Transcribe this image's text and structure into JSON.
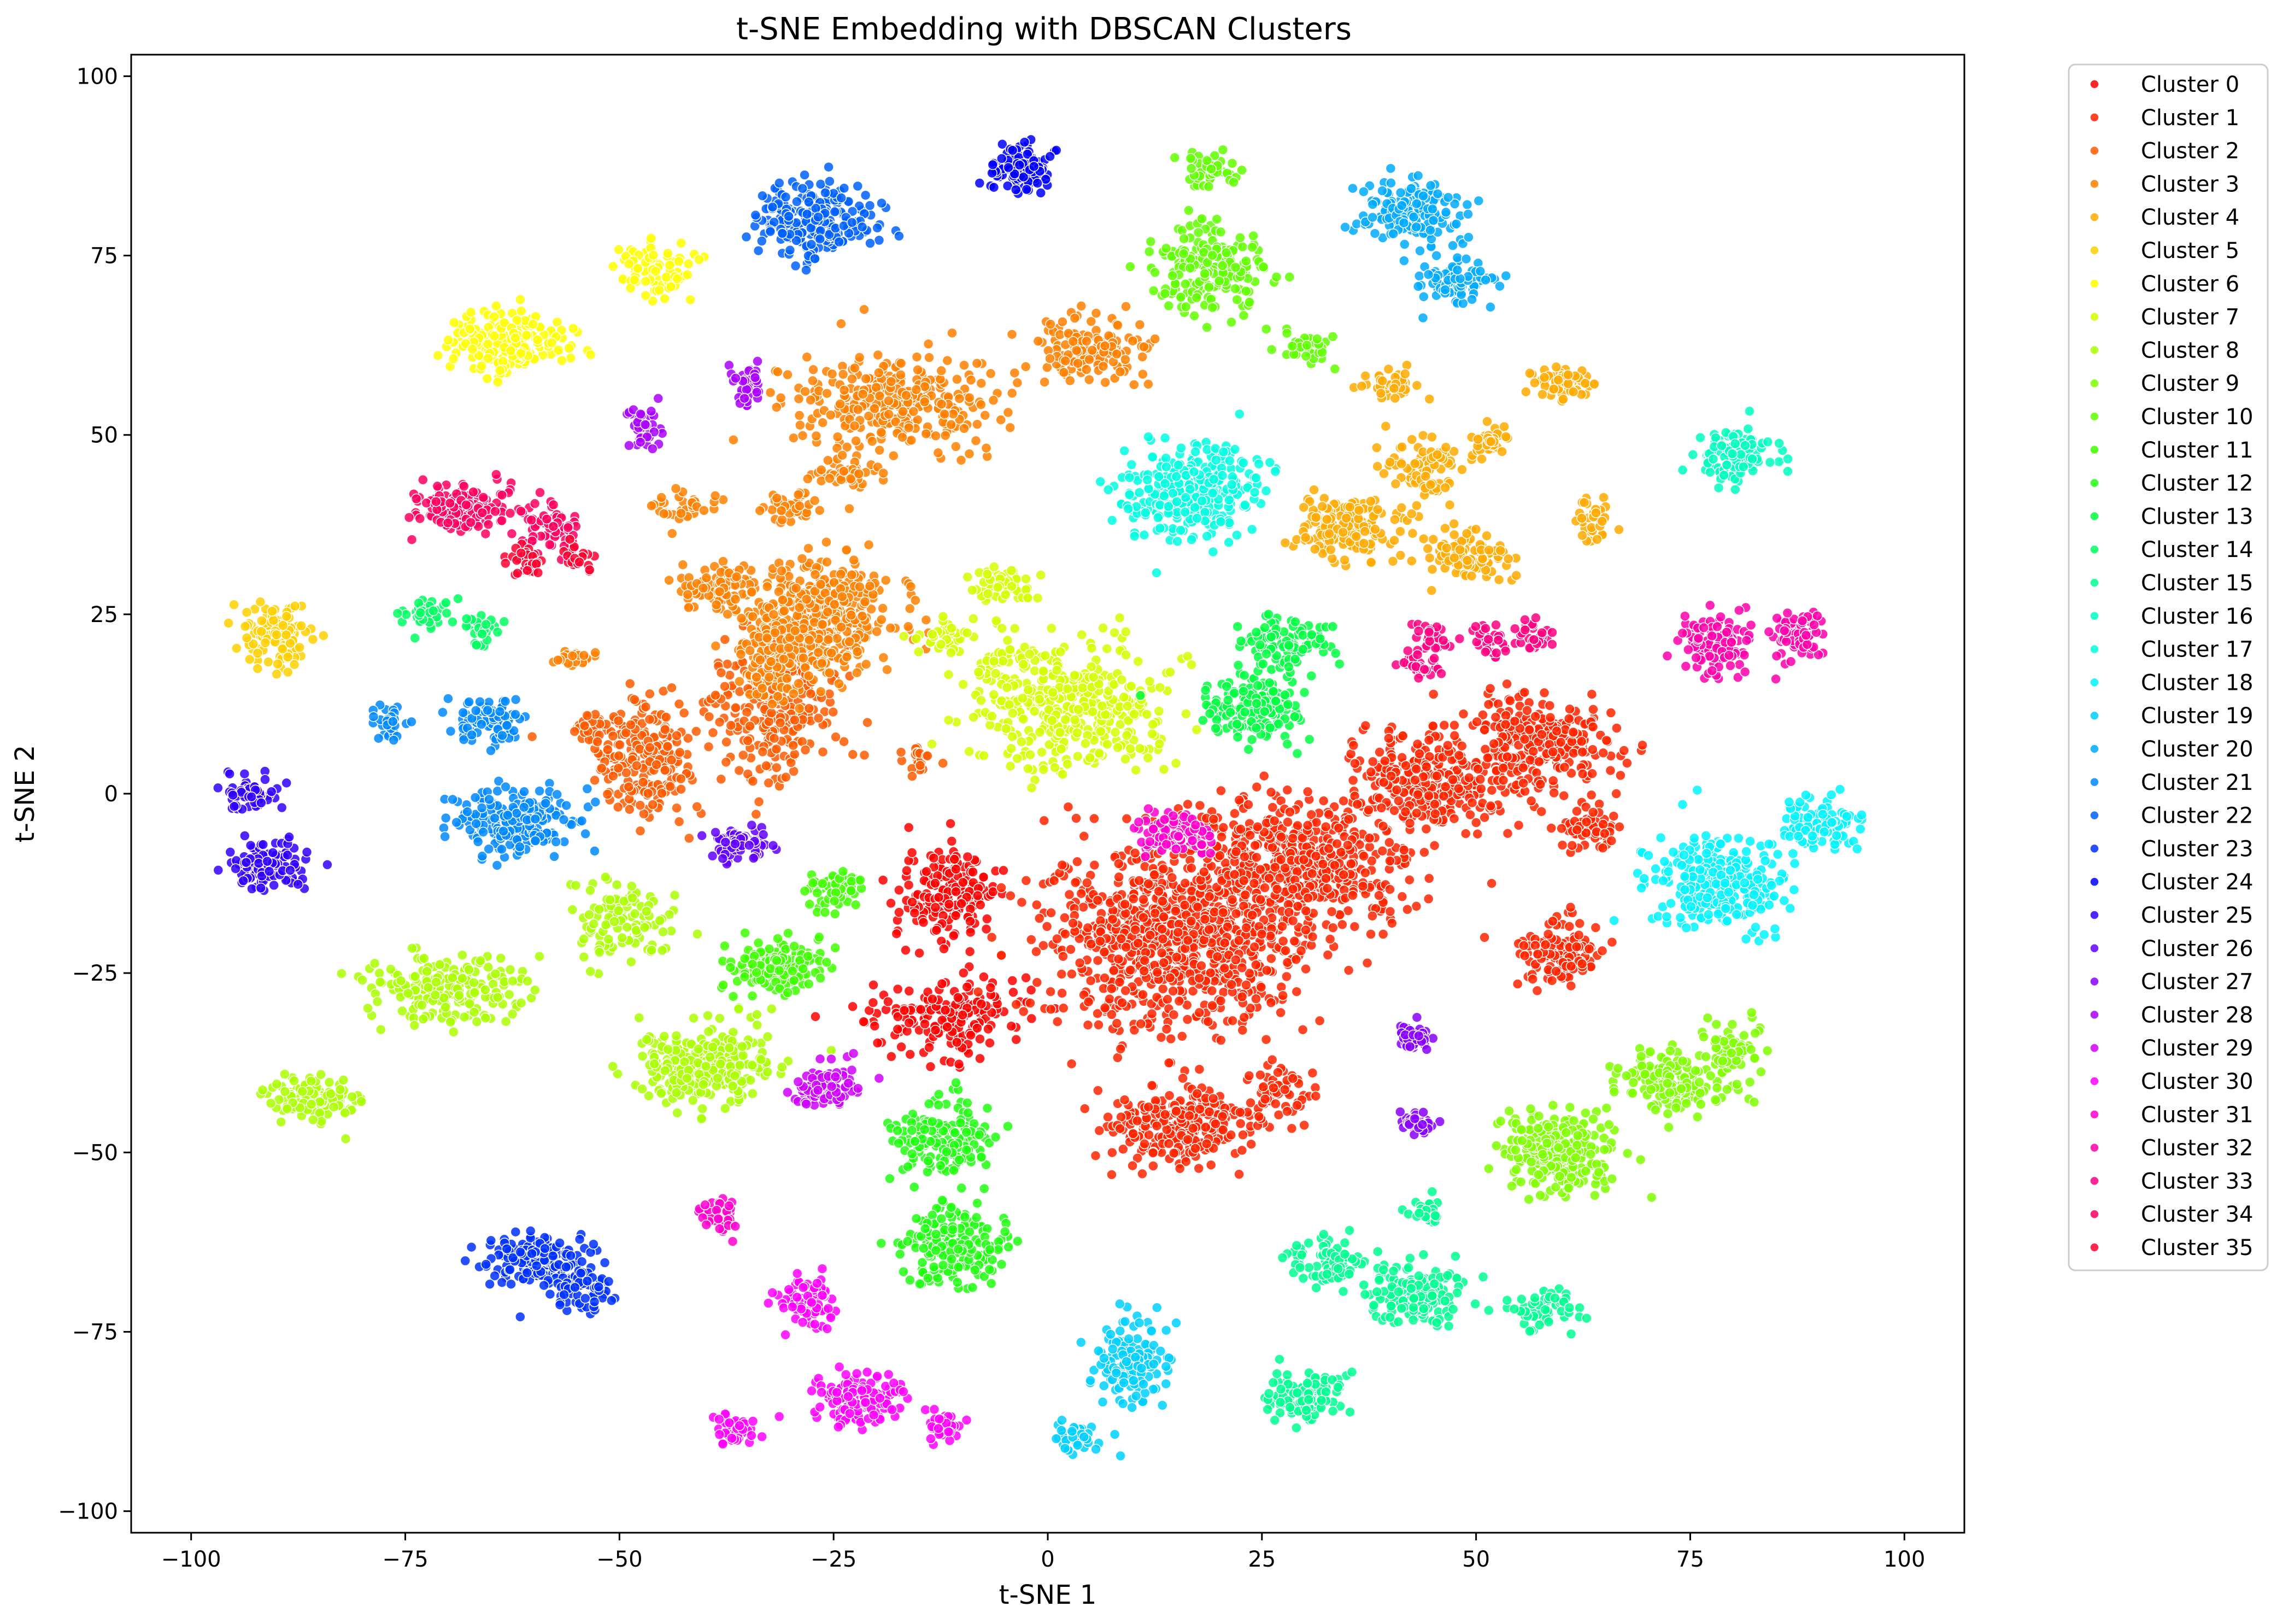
{
  "chart_data": {
    "type": "scatter",
    "title": "t-SNE Embedding with DBSCAN Clusters",
    "xlabel": "t-SNE 1",
    "ylabel": "t-SNE 2",
    "xlim": [
      -107,
      107
    ],
    "ylim": [
      -103,
      103
    ],
    "xticks": [
      -100,
      -75,
      -50,
      -25,
      0,
      25,
      50,
      75,
      100
    ],
    "yticks": [
      -100,
      -75,
      -50,
      -25,
      0,
      25,
      50,
      75,
      100
    ],
    "grid": false,
    "legend_position": "outside-right",
    "marker_edge_color": "#ffffff",
    "series": [
      {
        "name": "Cluster 0",
        "color": "#ff0000",
        "blobs": [
          [
            -12,
            -14,
            5,
            6,
            180
          ],
          [
            -11,
            -31,
            8,
            5,
            180
          ]
        ]
      },
      {
        "name": "Cluster 1",
        "color": "#ff2400",
        "blobs": [
          [
            15,
            -20,
            14,
            12,
            900
          ],
          [
            30,
            -10,
            12,
            8,
            500
          ],
          [
            45,
            2,
            8,
            6,
            300
          ],
          [
            57,
            7,
            8,
            5,
            280
          ],
          [
            15,
            -46,
            8,
            5,
            260
          ],
          [
            60,
            -22,
            4,
            4,
            120
          ],
          [
            27,
            -42,
            4,
            4,
            60
          ],
          [
            63,
            -5,
            3,
            3,
            60
          ]
        ]
      },
      {
        "name": "Cluster 2",
        "color": "#ff5b00",
        "blobs": [
          [
            -47,
            5,
            5,
            7,
            220
          ],
          [
            -53,
            9,
            2,
            2,
            40
          ],
          [
            -32,
            12,
            7,
            9,
            260
          ],
          [
            -15,
            5,
            2,
            2,
            20
          ]
        ]
      },
      {
        "name": "Cluster 3",
        "color": "#ff8000",
        "blobs": [
          [
            -27,
            25,
            8,
            7,
            420
          ],
          [
            -38,
            29,
            4,
            3,
            80
          ],
          [
            -30,
            40,
            3,
            2,
            40
          ],
          [
            -42,
            40,
            3,
            2,
            40
          ],
          [
            -55,
            19,
            2,
            1,
            30
          ],
          [
            -32,
            18,
            5,
            5,
            120
          ],
          [
            -18,
            55,
            11,
            6,
            300
          ],
          [
            5,
            62,
            6,
            4,
            150
          ],
          [
            -23,
            45,
            4,
            2,
            50
          ]
        ]
      },
      {
        "name": "Cluster 4",
        "color": "#ffaa00",
        "blobs": [
          [
            35,
            37,
            5,
            4,
            160
          ],
          [
            49,
            33,
            4,
            3,
            100
          ],
          [
            44,
            45,
            4,
            4,
            90
          ],
          [
            40,
            57,
            3,
            2,
            40
          ],
          [
            52,
            49,
            2,
            2,
            30
          ],
          [
            60,
            57,
            3,
            2,
            60
          ],
          [
            64,
            38,
            2,
            3,
            40
          ]
        ]
      },
      {
        "name": "Cluster 5",
        "color": "#ffd000",
        "blobs": [
          [
            -90,
            22,
            4,
            4,
            120
          ]
        ]
      },
      {
        "name": "Cluster 6",
        "color": "#ffff00",
        "blobs": [
          [
            -63,
            63,
            6,
            4,
            200
          ],
          [
            -46,
            73,
            4,
            4,
            90
          ]
        ]
      },
      {
        "name": "Cluster 7",
        "color": "#d4ff00",
        "blobs": [
          [
            -5,
            29,
            3,
            2,
            60
          ],
          [
            -12,
            22,
            3,
            2,
            40
          ],
          [
            -5,
            18,
            3,
            2,
            40
          ],
          [
            3,
            12,
            10,
            8,
            380
          ]
        ]
      },
      {
        "name": "Cluster 8",
        "color": "#aaff00",
        "blobs": [
          [
            -40,
            -38,
            7,
            5,
            300
          ],
          [
            -70,
            -27,
            9,
            4,
            200
          ],
          [
            -50,
            -18,
            5,
            5,
            110
          ],
          [
            -85,
            -43,
            5,
            3,
            110
          ]
        ]
      },
      {
        "name": "Cluster 9",
        "color": "#80ff00",
        "blobs": [
          [
            60,
            -50,
            6,
            5,
            260
          ],
          [
            73,
            -40,
            6,
            4,
            160
          ],
          [
            80,
            -35,
            3,
            3,
            60
          ]
        ]
      },
      {
        "name": "Cluster 10",
        "color": "#60ff00",
        "blobs": [
          [
            19,
            73,
            6,
            5,
            200
          ],
          [
            18,
            87,
            3,
            2,
            50
          ],
          [
            30,
            62,
            3,
            2,
            40
          ]
        ]
      },
      {
        "name": "Cluster 11",
        "color": "#40ff00",
        "blobs": [
          [
            -32,
            -24,
            5,
            3,
            160
          ],
          [
            -25,
            -13,
            3,
            3,
            70
          ]
        ]
      },
      {
        "name": "Cluster 12",
        "color": "#20ff10",
        "blobs": [
          [
            -12,
            -48,
            5,
            5,
            160
          ],
          [
            -11,
            -63,
            6,
            5,
            180
          ]
        ]
      },
      {
        "name": "Cluster 13",
        "color": "#00ff40",
        "blobs": [
          [
            24,
            12,
            5,
            4,
            160
          ],
          [
            28,
            21,
            5,
            3,
            90
          ]
        ]
      },
      {
        "name": "Cluster 14",
        "color": "#00ff60",
        "blobs": [
          [
            -73,
            25,
            3,
            2,
            40
          ],
          [
            -66,
            23,
            2,
            2,
            30
          ]
        ]
      },
      {
        "name": "Cluster 15",
        "color": "#00ff90",
        "blobs": [
          [
            30,
            -84,
            4,
            3,
            120
          ],
          [
            33,
            -65,
            4,
            3,
            80
          ],
          [
            43,
            -70,
            6,
            4,
            150
          ],
          [
            58,
            -72,
            3,
            3,
            60
          ],
          [
            44,
            -58,
            2,
            2,
            30
          ]
        ]
      },
      {
        "name": "Cluster 16",
        "color": "#00ffbf",
        "blobs": [
          [
            80,
            47,
            4,
            3,
            110
          ]
        ]
      },
      {
        "name": "Cluster 17",
        "color": "#00ffe0",
        "blobs": [
          [
            17,
            42,
            7,
            6,
            300
          ]
        ]
      },
      {
        "name": "Cluster 18",
        "color": "#00f4ff",
        "blobs": [
          [
            78,
            -12,
            7,
            6,
            300
          ],
          [
            90,
            -4,
            4,
            3,
            100
          ]
        ]
      },
      {
        "name": "Cluster 19",
        "color": "#00d0ff",
        "blobs": [
          [
            10,
            -79,
            4,
            5,
            160
          ],
          [
            4,
            -90,
            3,
            2,
            40
          ]
        ]
      },
      {
        "name": "Cluster 20",
        "color": "#00aaff",
        "blobs": [
          [
            42,
            81,
            5,
            4,
            160
          ],
          [
            48,
            71,
            4,
            3,
            80
          ]
        ]
      },
      {
        "name": "Cluster 21",
        "color": "#0088ff",
        "blobs": [
          [
            -62,
            -4,
            6,
            4,
            220
          ],
          [
            -65,
            10,
            4,
            3,
            100
          ],
          [
            -77,
            10,
            2,
            2,
            30
          ]
        ]
      },
      {
        "name": "Cluster 22",
        "color": "#0060ff",
        "blobs": [
          [
            -27,
            80,
            6,
            5,
            240
          ]
        ]
      },
      {
        "name": "Cluster 23",
        "color": "#0030ff",
        "blobs": [
          [
            -60,
            -65,
            5,
            3,
            160
          ],
          [
            -54,
            -69,
            3,
            3,
            60
          ]
        ]
      },
      {
        "name": "Cluster 24",
        "color": "#0000ff",
        "blobs": [
          [
            -3,
            87,
            3,
            3,
            120
          ]
        ]
      },
      {
        "name": "Cluster 25",
        "color": "#3000ff",
        "blobs": [
          [
            -91,
            -10,
            4,
            3,
            120
          ],
          [
            -93,
            0,
            3,
            2,
            60
          ]
        ]
      },
      {
        "name": "Cluster 26",
        "color": "#6000ff",
        "blobs": [
          [
            -36,
            -7,
            3,
            2,
            70
          ]
        ]
      },
      {
        "name": "Cluster 27",
        "color": "#8800ff",
        "blobs": [
          [
            43,
            -34,
            2,
            2,
            50
          ],
          [
            43,
            -46,
            2,
            2,
            40
          ]
        ]
      },
      {
        "name": "Cluster 28",
        "color": "#aa00ff",
        "blobs": [
          [
            -47,
            51,
            2,
            3,
            40
          ],
          [
            -35,
            57,
            2,
            2,
            40
          ]
        ]
      },
      {
        "name": "Cluster 29",
        "color": "#d000ff",
        "blobs": [
          [
            -26,
            -41,
            3,
            3,
            100
          ]
        ]
      },
      {
        "name": "Cluster 30",
        "color": "#ff00ff",
        "blobs": [
          [
            -28,
            -71,
            3,
            3,
            80
          ],
          [
            -22,
            -84,
            5,
            3,
            140
          ],
          [
            -12,
            -88,
            2,
            2,
            40
          ],
          [
            -37,
            -89,
            2,
            2,
            40
          ]
        ]
      },
      {
        "name": "Cluster 31",
        "color": "#ff00d0",
        "blobs": [
          [
            15,
            -6,
            4,
            3,
            100
          ],
          [
            -38,
            -59,
            2,
            2,
            40
          ]
        ]
      },
      {
        "name": "Cluster 32",
        "color": "#ff00aa",
        "blobs": [
          [
            78,
            21,
            4,
            4,
            120
          ],
          [
            88,
            22,
            3,
            3,
            70
          ]
        ]
      },
      {
        "name": "Cluster 33",
        "color": "#ff0080",
        "blobs": [
          [
            45,
            22,
            2,
            2,
            30
          ],
          [
            52,
            21,
            2,
            2,
            30
          ],
          [
            57,
            22,
            2,
            2,
            30
          ],
          [
            43,
            18,
            2,
            2,
            30
          ]
        ]
      },
      {
        "name": "Cluster 34",
        "color": "#ff0060",
        "blobs": [
          [
            -68,
            40,
            5,
            3,
            160
          ],
          [
            -58,
            37,
            3,
            3,
            60
          ]
        ]
      },
      {
        "name": "Cluster 35",
        "color": "#ff0030",
        "blobs": [
          [
            -61,
            32,
            2,
            2,
            30
          ],
          [
            -55,
            33,
            2,
            2,
            20
          ]
        ]
      }
    ]
  }
}
